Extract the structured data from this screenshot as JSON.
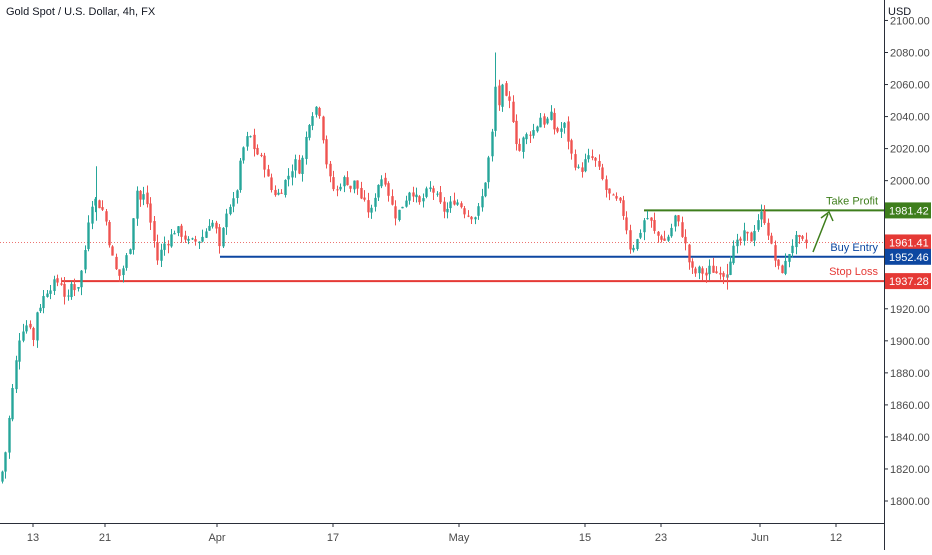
{
  "header": {
    "symbol_title": "Gold Spot / U.S. Dollar, 4h, FX",
    "currency": "USD"
  },
  "colors": {
    "up": "#26a69a",
    "down": "#ef5350",
    "take_profit": "#3e7e1c",
    "buy_entry": "#0d47a1",
    "stop_loss": "#e53935",
    "last_price": "#e53935",
    "axis_text": "#4a4a4a",
    "axis_line": "#2a2e39"
  },
  "chart_data": {
    "type": "candlestick",
    "y_axis": {
      "ticks": [
        1800,
        1820,
        1840,
        1860,
        1880,
        1900,
        1920,
        1940,
        1960,
        1980,
        2000,
        2020,
        2040,
        2060,
        2080,
        2100
      ],
      "tick_labels": [
        "1800.00",
        "1820.00",
        "1840.00",
        "1860.00",
        "1880.00",
        "1900.00",
        "1920.00",
        "1940.00",
        "1960.00",
        "1980.00",
        "2000.00",
        "2020.00",
        "2040.00",
        "2060.00",
        "2080.00",
        "2100.00"
      ],
      "range": [
        1785,
        2110
      ],
      "unit": "USD"
    },
    "x_axis": {
      "labels": [
        "13",
        "21",
        "Apr",
        "17",
        "May",
        "15",
        "23",
        "Jun",
        "12"
      ],
      "range": [
        "Mar 13",
        "Jun 12"
      ]
    },
    "price_path": [
      [
        0,
        1812
      ],
      [
        5,
        1828
      ],
      [
        10,
        1858
      ],
      [
        16,
        1888
      ],
      [
        20,
        1905
      ],
      [
        25,
        1910
      ],
      [
        30,
        1910
      ],
      [
        33,
        1900
      ],
      [
        36,
        1918
      ],
      [
        40,
        1922
      ],
      [
        45,
        1930
      ],
      [
        55,
        1937
      ],
      [
        62,
        1936
      ],
      [
        66,
        1922
      ],
      [
        72,
        1938
      ],
      [
        76,
        1930
      ],
      [
        82,
        1945
      ],
      [
        86,
        1962
      ],
      [
        88,
        1975
      ],
      [
        93,
        1990
      ],
      [
        98,
        1985
      ],
      [
        104,
        1980
      ],
      [
        110,
        1958
      ],
      [
        115,
        1945
      ],
      [
        120,
        1940
      ],
      [
        125,
        1950
      ],
      [
        130,
        1960
      ],
      [
        136,
        1995
      ],
      [
        140,
        1988
      ],
      [
        145,
        1992
      ],
      [
        150,
        1975
      ],
      [
        155,
        1958
      ],
      [
        158,
        1948
      ],
      [
        162,
        1960
      ],
      [
        168,
        1962
      ],
      [
        173,
        1968
      ],
      [
        177,
        1970
      ],
      [
        182,
        1966
      ],
      [
        188,
        1962
      ],
      [
        195,
        1962
      ],
      [
        200,
        1963
      ],
      [
        205,
        1968
      ],
      [
        210,
        1975
      ],
      [
        215,
        1972
      ],
      [
        220,
        1955
      ],
      [
        225,
        1980
      ],
      [
        230,
        1985
      ],
      [
        235,
        1988
      ],
      [
        240,
        2010
      ],
      [
        245,
        2025
      ],
      [
        250,
        2028
      ],
      [
        255,
        2018
      ],
      [
        260,
        2015
      ],
      [
        265,
        2008
      ],
      [
        270,
        1995
      ],
      [
        275,
        1992
      ],
      [
        280,
        1992
      ],
      [
        285,
        2000
      ],
      [
        290,
        2005
      ],
      [
        295,
        2012
      ],
      [
        300,
        2005
      ],
      [
        305,
        2025
      ],
      [
        310,
        2040
      ],
      [
        315,
        2045
      ],
      [
        318,
        2048
      ],
      [
        320,
        2040
      ],
      [
        322,
        2032
      ],
      [
        325,
        2015
      ],
      [
        330,
        2000
      ],
      [
        335,
        1992
      ],
      [
        340,
        1998
      ],
      [
        345,
        2002
      ],
      [
        350,
        1995
      ],
      [
        355,
        2000
      ],
      [
        360,
        1990
      ],
      [
        365,
        1985
      ],
      [
        370,
        1978
      ],
      [
        375,
        1992
      ],
      [
        380,
        2002
      ],
      [
        385,
        2000
      ],
      [
        390,
        1988
      ],
      [
        395,
        1978
      ],
      [
        400,
        1982
      ],
      [
        405,
        1988
      ],
      [
        410,
        1995
      ],
      [
        415,
        1990
      ],
      [
        420,
        1985
      ],
      [
        425,
        1992
      ],
      [
        430,
        1995
      ],
      [
        435,
        1992
      ],
      [
        440,
        1985
      ],
      [
        445,
        1980
      ],
      [
        450,
        1985
      ],
      [
        455,
        1988
      ],
      [
        460,
        1985
      ],
      [
        465,
        1980
      ],
      [
        470,
        1978
      ],
      [
        475,
        1978
      ],
      [
        480,
        1985
      ],
      [
        485,
        2000
      ],
      [
        490,
        2020
      ],
      [
        493,
        2035
      ],
      [
        495,
        2060
      ],
      [
        498,
        2045
      ],
      [
        502,
        2058
      ],
      [
        506,
        2050
      ],
      [
        510,
        2048
      ],
      [
        515,
        2030
      ],
      [
        518,
        2015
      ],
      [
        522,
        2025
      ],
      [
        526,
        2028
      ],
      [
        530,
        2030
      ],
      [
        535,
        2032
      ],
      [
        540,
        2040
      ],
      [
        545,
        2035
      ],
      [
        550,
        2042
      ],
      [
        555,
        2030
      ],
      [
        560,
        2032
      ],
      [
        565,
        2035
      ],
      [
        570,
        2018
      ],
      [
        575,
        2010
      ],
      [
        580,
        2005
      ],
      [
        585,
        2012
      ],
      [
        590,
        2015
      ],
      [
        595,
        2012
      ],
      [
        600,
        2005
      ],
      [
        605,
        1995
      ],
      [
        610,
        1990
      ],
      [
        615,
        1988
      ],
      [
        620,
        1985
      ],
      [
        625,
        1975
      ],
      [
        630,
        1958
      ],
      [
        635,
        1960
      ],
      [
        640,
        1968
      ],
      [
        645,
        1978
      ],
      [
        650,
        1975
      ],
      [
        655,
        1966
      ],
      [
        660,
        1965
      ],
      [
        665,
        1962
      ],
      [
        670,
        1968
      ],
      [
        675,
        1978
      ],
      [
        680,
        1970
      ],
      [
        685,
        1960
      ],
      [
        690,
        1945
      ],
      [
        695,
        1942
      ],
      [
        700,
        1945
      ],
      [
        705,
        1940
      ],
      [
        710,
        1946
      ],
      [
        715,
        1942
      ],
      [
        720,
        1944
      ],
      [
        725,
        1940
      ],
      [
        730,
        1952
      ],
      [
        735,
        1960
      ],
      [
        740,
        1962
      ],
      [
        745,
        1968
      ],
      [
        750,
        1962
      ],
      [
        755,
        1972
      ],
      [
        760,
        1980
      ],
      [
        765,
        1975
      ],
      [
        770,
        1962
      ],
      [
        775,
        1950
      ],
      [
        780,
        1942
      ],
      [
        785,
        1948
      ],
      [
        790,
        1958
      ],
      [
        795,
        1964
      ],
      [
        800,
        1962
      ],
      [
        806,
        1961
      ]
    ],
    "annotations": {
      "take_profit": {
        "label": "Take Profit",
        "price": 1981.42,
        "price_label": "1981.42"
      },
      "buy_entry": {
        "label": "Buy Entry",
        "price": 1952.46,
        "price_label": "1952.46"
      },
      "stop_loss": {
        "label": "Stop Loss",
        "price": 1937.28,
        "price_label": "1937.28"
      },
      "last_price": {
        "price": 1961.41,
        "price_label": "1961.41"
      }
    }
  }
}
